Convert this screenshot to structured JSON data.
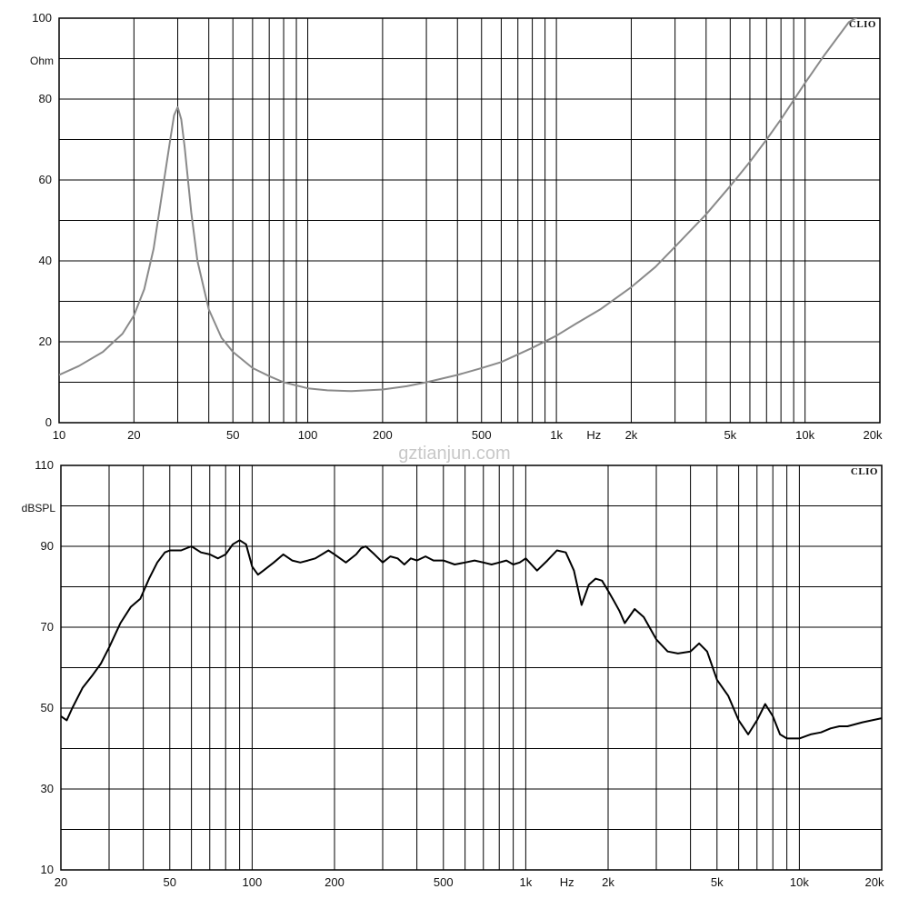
{
  "watermark": "gztianjun.com",
  "chart_data": [
    {
      "type": "line",
      "brand": "CLIO",
      "xlabel": "Hz",
      "ylabel": "Ohm",
      "xscale": "log",
      "xlim": [
        10,
        20000
      ],
      "ylim": [
        0,
        100
      ],
      "grid": true,
      "line_color": "#8a8a8a",
      "x_tick_labels": [
        {
          "value": 10,
          "label": "10"
        },
        {
          "value": 20,
          "label": "20"
        },
        {
          "value": 50,
          "label": "50"
        },
        {
          "value": 100,
          "label": "100"
        },
        {
          "value": 200,
          "label": "200"
        },
        {
          "value": 500,
          "label": "500"
        },
        {
          "value": 1000,
          "label": "1k"
        },
        {
          "value": 2000,
          "label": "2k"
        },
        {
          "value": 5000,
          "label": "5k"
        },
        {
          "value": 10000,
          "label": "10k"
        },
        {
          "value": 20000,
          "label": "20k"
        }
      ],
      "y_tick_labels": [
        {
          "value": 0,
          "label": "0"
        },
        {
          "value": 20,
          "label": "20"
        },
        {
          "value": 40,
          "label": "40"
        },
        {
          "value": 60,
          "label": "60"
        },
        {
          "value": 80,
          "label": "80"
        },
        {
          "value": 100,
          "label": "100"
        }
      ],
      "series": [
        {
          "x": [
            10,
            12,
            15,
            18,
            20,
            22,
            24,
            26,
            28,
            29,
            30,
            31,
            32,
            34,
            36,
            40,
            45,
            50,
            60,
            70,
            80,
            100,
            120,
            150,
            200,
            250,
            300,
            400,
            500,
            600,
            800,
            1000,
            1200,
            1500,
            2000,
            2500,
            3000,
            4000,
            5000,
            6000,
            7000,
            8000,
            10000,
            12000,
            15000,
            17000
          ],
          "y": [
            11.8,
            14,
            17.5,
            22,
            26.5,
            33,
            43,
            57,
            70,
            76,
            78,
            75,
            68,
            52,
            40,
            28,
            21,
            17.5,
            13.5,
            11.5,
            10,
            8.5,
            8,
            7.8,
            8.2,
            9,
            10,
            11.8,
            13.5,
            15,
            18.5,
            21.5,
            24.5,
            28,
            33.5,
            38.5,
            43.5,
            51.5,
            58.5,
            64.5,
            70,
            75,
            84,
            91,
            99,
            101
          ]
        }
      ]
    },
    {
      "type": "line",
      "brand": "CLIO",
      "xlabel": "Hz",
      "ylabel": "dBSPL",
      "xscale": "log",
      "xlim": [
        20,
        20000
      ],
      "ylim": [
        10,
        110
      ],
      "grid": true,
      "line_color": "#000000",
      "x_tick_labels": [
        {
          "value": 20,
          "label": "20"
        },
        {
          "value": 50,
          "label": "50"
        },
        {
          "value": 100,
          "label": "100"
        },
        {
          "value": 200,
          "label": "200"
        },
        {
          "value": 500,
          "label": "500"
        },
        {
          "value": 1000,
          "label": "1k"
        },
        {
          "value": 2000,
          "label": "2k"
        },
        {
          "value": 5000,
          "label": "5k"
        },
        {
          "value": 10000,
          "label": "10k"
        },
        {
          "value": 20000,
          "label": "20k"
        }
      ],
      "y_tick_labels": [
        {
          "value": 10,
          "label": "10"
        },
        {
          "value": 30,
          "label": "30"
        },
        {
          "value": 50,
          "label": "50"
        },
        {
          "value": 70,
          "label": "70"
        },
        {
          "value": 90,
          "label": "90"
        },
        {
          "value": 110,
          "label": "110"
        }
      ],
      "series": [
        {
          "x": [
            20,
            21,
            22,
            24,
            26,
            28,
            30,
            33,
            36,
            39,
            42,
            45,
            48,
            50,
            55,
            60,
            65,
            70,
            75,
            80,
            85,
            90,
            95,
            100,
            105,
            110,
            120,
            130,
            140,
            150,
            160,
            170,
            180,
            190,
            200,
            220,
            240,
            250,
            260,
            280,
            300,
            320,
            340,
            360,
            380,
            400,
            430,
            460,
            500,
            550,
            600,
            650,
            700,
            750,
            800,
            850,
            900,
            950,
            1000,
            1100,
            1200,
            1300,
            1400,
            1500,
            1600,
            1700,
            1800,
            1900,
            2000,
            2100,
            2200,
            2300,
            2500,
            2700,
            3000,
            3300,
            3600,
            4000,
            4300,
            4600,
            5000,
            5500,
            6000,
            6500,
            7000,
            7500,
            8000,
            8500,
            9000,
            10000,
            11000,
            12000,
            13000,
            14000,
            15000,
            17000,
            20000
          ],
          "y": [
            48,
            47,
            50,
            55,
            58,
            61,
            65,
            71,
            75,
            77,
            82,
            86,
            88.5,
            89,
            89,
            90,
            88.5,
            88,
            87,
            88,
            90.5,
            91.5,
            90.5,
            85,
            83,
            84,
            86,
            88,
            86.5,
            86,
            86.5,
            87,
            88,
            89,
            88,
            86,
            88,
            89.5,
            90,
            88,
            86,
            87.5,
            87,
            85.5,
            87,
            86.5,
            87.5,
            86.5,
            86.5,
            85.5,
            86,
            86.5,
            86,
            85.5,
            86,
            86.5,
            85.5,
            86,
            87,
            84,
            86.5,
            89,
            88.5,
            84,
            75.5,
            80.5,
            82,
            81.5,
            79,
            76.5,
            74,
            71,
            74.5,
            72.5,
            67,
            64,
            63.5,
            64,
            66,
            64,
            57,
            53,
            47,
            43.5,
            47,
            51,
            48,
            43.5,
            42.5,
            42.5,
            43.5,
            44,
            45,
            45.5,
            45.5,
            46.5,
            47.5
          ]
        }
      ]
    }
  ]
}
